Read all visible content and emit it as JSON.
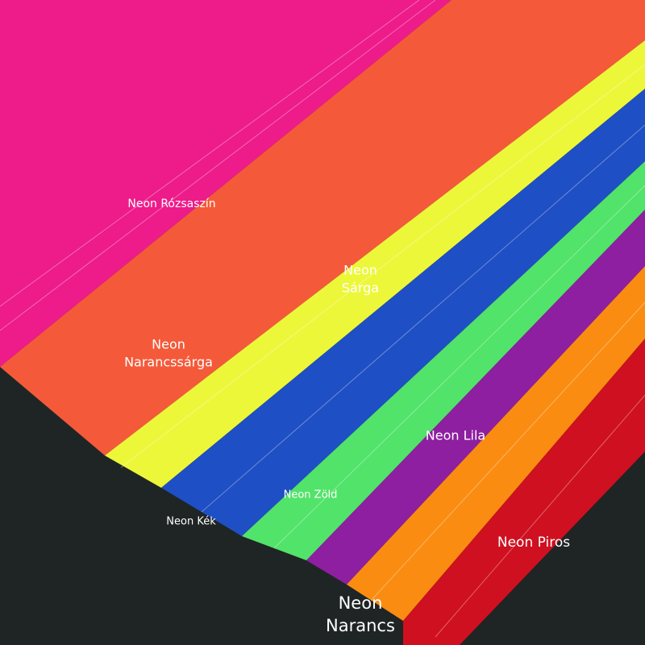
{
  "labels": [
    {
      "lines": [
        "Neon Rózsaszín"
      ]
    },
    {
      "lines": [
        "Neon",
        "Sárga"
      ]
    },
    {
      "lines": [
        "Neon",
        "Narancssárga"
      ]
    },
    {
      "lines": [
        "Neon Lila"
      ]
    },
    {
      "lines": [
        "Neon Zöld"
      ]
    },
    {
      "lines": [
        "Neon Kék"
      ]
    },
    {
      "lines": [
        "Neon Piros"
      ]
    },
    {
      "lines": [
        "Neon",
        "Narancs"
      ]
    }
  ]
}
